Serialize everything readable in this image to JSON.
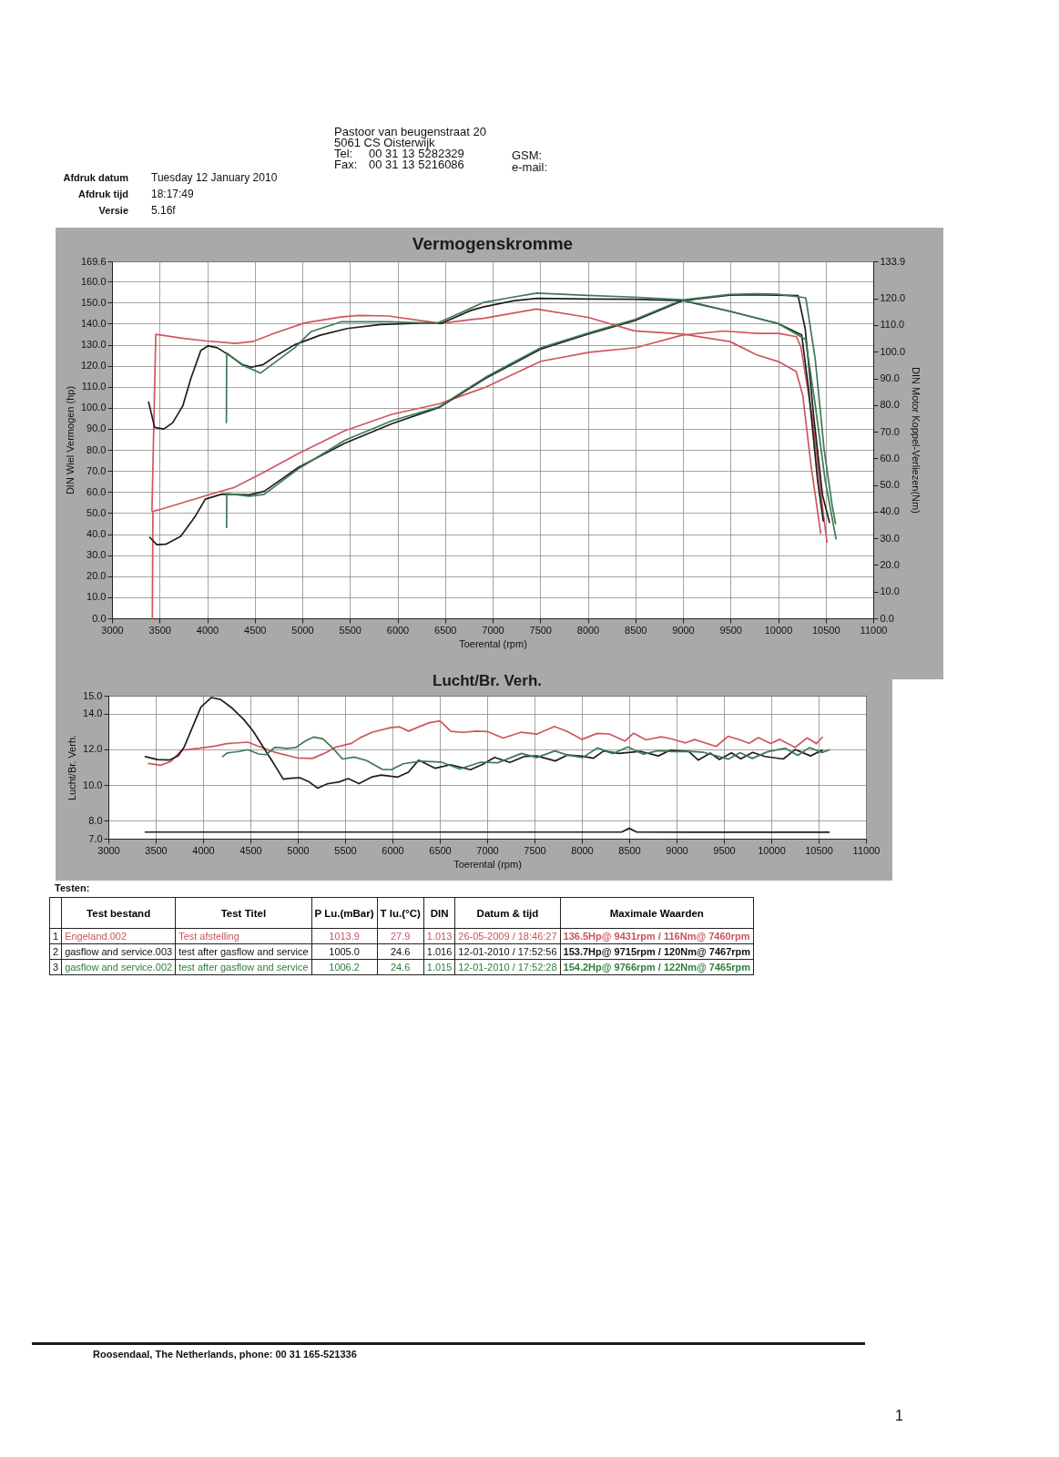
{
  "chart_data": [
    {
      "type": "other",
      "annotations": [
        "Afdruk datum",
        "Tuesday 12 January 2010",
        "Afdruk tijd",
        "18:17:49",
        "Versie",
        "5.16f",
        "Pastoor van beugenstraat  20",
        "5061 CS Oisterwijk",
        "Tel:",
        "00 31 13 5282329",
        "Fax:",
        "00 31 13 5216086",
        "GSM:",
        "e-mail:"
      ]
    },
    {
      "type": "line",
      "title": "Vermogenskromme",
      "xlabel": "Toerental (rpm)",
      "ylabel": "DIN Wiel Vermogen (hp)",
      "y2label": "DIN Motor Koppel-Verliezen(Nm)",
      "xlim": [
        3000,
        11000
      ],
      "xticks": [
        3000,
        3500,
        4000,
        4500,
        5000,
        5500,
        6000,
        6500,
        7000,
        7500,
        8000,
        8500,
        9000,
        9500,
        10000,
        10500,
        11000
      ],
      "ylim": [
        0,
        169.6
      ],
      "yticks": [
        {
          "value": 0,
          "label": "0.0"
        },
        {
          "value": 10,
          "label": "10.0"
        },
        {
          "value": 20,
          "label": "20.0"
        },
        {
          "value": 30,
          "label": "30.0"
        },
        {
          "value": 40,
          "label": "40.0"
        },
        {
          "value": 50,
          "label": "50.0"
        },
        {
          "value": 60,
          "label": "60.0"
        },
        {
          "value": 70,
          "label": "70.0"
        },
        {
          "value": 80,
          "label": "80.0"
        },
        {
          "value": 90,
          "label": "90.0"
        },
        {
          "value": 100,
          "label": "100.0"
        },
        {
          "value": 110,
          "label": "110.0"
        },
        {
          "value": 120,
          "label": "120.0"
        },
        {
          "value": 130,
          "label": "130.0"
        },
        {
          "value": 140,
          "label": "140.0"
        },
        {
          "value": 150,
          "label": "150.0"
        },
        {
          "value": 160,
          "label": "160.0"
        },
        169.6
      ],
      "y2lim": [
        0,
        133.9
      ],
      "y2ticks": [
        {
          "value": 0,
          "label": "0.0"
        },
        {
          "value": 10,
          "label": "10.0"
        },
        {
          "value": 20,
          "label": "20.0"
        },
        {
          "value": 30,
          "label": "30.0"
        },
        {
          "value": 40,
          "label": "40.0"
        },
        {
          "value": 50,
          "label": "50.0"
        },
        {
          "value": 60,
          "label": "60.0"
        },
        {
          "value": 70,
          "label": "70.0"
        },
        {
          "value": 80,
          "label": "80.0"
        },
        {
          "value": 90,
          "label": "90.0"
        },
        {
          "value": 100,
          "label": "100.0"
        },
        {
          "value": 110,
          "label": "110.0"
        },
        {
          "value": 120,
          "label": "120.0"
        },
        133.9
      ],
      "grid": true,
      "series": [
        {
          "color": "#d0565e",
          "x": [
            3424,
            3430,
            3522,
            3964,
            4280,
            4594,
            4955,
            5441,
            5940,
            6437,
            6925,
            7507,
            8014,
            8506,
            8999,
            9431,
            9777,
            10006,
            10192,
            10240,
            10363,
            10451,
            10514
          ],
          "values": [
            0,
            50.8,
            51.9,
            58.0,
            62.1,
            69.3,
            78.2,
            89.0,
            96.9,
            101.9,
            109.8,
            122.1,
            126.4,
            128.6,
            134.6,
            136.5,
            135.4,
            135.4,
            133.8,
            128.9,
            94.4,
            58.4,
            36.2
          ]
        },
        {
          "color": "#1e1e1e",
          "x": [
            3397,
            3470,
            3565,
            3722,
            3875,
            3981,
            4155,
            4442,
            4599,
            4959,
            5446,
            5943,
            6438,
            6925,
            7503,
            8008,
            8497,
            8995,
            9490,
            9715,
            9993,
            10210,
            10285,
            10378,
            10467,
            10540
          ],
          "values": [
            38.5,
            35.0,
            35.2,
            38.9,
            48.5,
            56.6,
            59.0,
            58.7,
            60.3,
            71.7,
            83.2,
            92.5,
            100.2,
            114.0,
            127.9,
            135.1,
            141.5,
            150.9,
            153.5,
            153.7,
            153.5,
            153.3,
            137.6,
            94.4,
            58.5,
            45.6
          ]
        },
        {
          "color": "#3d7a55",
          "x": [
            4204,
            4206,
            4442,
            4599,
            4959,
            5446,
            5943,
            6438,
            6925,
            7503,
            8008,
            8497,
            8995,
            9490,
            9766,
            9993,
            10291,
            10390,
            10484,
            10566,
            10604
          ],
          "values": [
            43.2,
            59.2,
            58.0,
            58.9,
            71.0,
            84.6,
            93.9,
            100.5,
            114.5,
            128.5,
            135.6,
            142.0,
            151.3,
            153.9,
            154.2,
            154.0,
            152.3,
            123.3,
            80.1,
            54.3,
            45.0
          ]
        },
        {
          "color": "#d0565e",
          "axis": "y2",
          "x": [
            3420,
            3460,
            3754,
            3977,
            4297,
            4488,
            4712,
            5023,
            5403,
            5594,
            5905,
            6267,
            6458,
            6779,
            6903,
            7460,
            8003,
            8490,
            8999,
            9496,
            9771,
            10003,
            10191,
            10260,
            10346,
            10448
          ],
          "values": [
            40.3,
            106.5,
            105.0,
            104.1,
            103.1,
            103.9,
            107.0,
            110.8,
            113.0,
            113.6,
            113.4,
            111.6,
            110.6,
            112.1,
            112.5,
            116.0,
            112.9,
            107.8,
            106.6,
            103.8,
            98.9,
            96.3,
            92.6,
            83.5,
            57.4,
            31.9
          ]
        },
        {
          "color": "#1e1e1e",
          "axis": "y2",
          "x": [
            3385,
            3448,
            3544,
            3637,
            3744,
            3830,
            3933,
            4011,
            4107,
            4238,
            4368,
            4464,
            4591,
            4747,
            4919,
            5187,
            5472,
            5821,
            6299,
            6458,
            6773,
            6900,
            7215,
            7467,
            8000,
            8498,
            9000,
            9499,
            9999,
            10248,
            10321,
            10415,
            10475
          ],
          "values": [
            81.1,
            71.6,
            71.0,
            73.3,
            79.7,
            90.1,
            100.4,
            102.2,
            101.5,
            98.5,
            95.2,
            94.2,
            95.2,
            99.0,
            102.6,
            106.2,
            108.7,
            110.2,
            110.8,
            110.6,
            115.5,
            116.8,
            119.1,
            120.0,
            119.8,
            119.7,
            119.2,
            115.1,
            110.6,
            106.3,
            85.9,
            51.8,
            36.5
          ]
        },
        {
          "color": "#3d7a55",
          "axis": "y2",
          "x": [
            4202,
            4205,
            4368,
            4562,
            4743,
            4920,
            5090,
            5406,
            5909,
            6410,
            6907,
            7215,
            7465,
            7995,
            8479,
            8981,
            9499,
            9999,
            10289,
            10390,
            10494,
            10609
          ],
          "values": [
            73.4,
            99.6,
            95.0,
            92.0,
            96.8,
            101.5,
            107.5,
            111.2,
            111.2,
            110.6,
            118.5,
            120.5,
            122.0,
            121.1,
            120.5,
            119.5,
            115.1,
            110.6,
            104.6,
            80.2,
            51.9,
            29.8
          ]
        }
      ]
    },
    {
      "type": "line",
      "title": "Lucht/Br. Verh.",
      "xlabel": "Toerental (rpm)",
      "ylabel": "Lucht/Br. Verh.",
      "xlim": [
        3000,
        11000
      ],
      "xticks": [
        3000,
        3500,
        4000,
        4500,
        5000,
        5500,
        6000,
        6500,
        7000,
        7500,
        8000,
        8500,
        9000,
        9500,
        10000,
        10500,
        11000
      ],
      "ylim": [
        7,
        15
      ],
      "yticks": [
        {
          "value": 7,
          "label": "7.0"
        },
        {
          "value": 8,
          "label": "8.0"
        },
        {
          "value": 10,
          "label": "10.0"
        },
        {
          "value": 12,
          "label": "12.0"
        },
        {
          "value": 14,
          "label": "14.0"
        },
        {
          "value": 15,
          "label": "15.0"
        }
      ],
      "grid": true,
      "series": [
        {
          "color": "#d0565e",
          "x": [
            3424,
            3552,
            3663,
            3773,
            3964,
            4123,
            4250,
            4474,
            4571,
            4768,
            4992,
            5153,
            5279,
            5404,
            5567,
            5658,
            5788,
            5979,
            6075,
            6170,
            6280,
            6390,
            6502,
            6617,
            6746,
            6878,
            7007,
            7169,
            7360,
            7521,
            7711,
            7840,
            8003,
            8161,
            8290,
            8453,
            8547,
            8678,
            8837,
            8950,
            9095,
            9191,
            9418,
            9543,
            9671,
            9767,
            9863,
            9994,
            10090,
            10252,
            10378,
            10476,
            10539
          ],
          "values": [
            11.21,
            11.11,
            11.33,
            11.95,
            12.06,
            12.18,
            12.32,
            12.4,
            12.2,
            11.82,
            11.52,
            11.49,
            11.77,
            12.13,
            12.33,
            12.65,
            12.96,
            13.21,
            13.26,
            13.02,
            13.26,
            13.49,
            13.59,
            13.01,
            12.95,
            13.02,
            12.99,
            12.63,
            12.96,
            12.85,
            13.28,
            13.01,
            12.56,
            12.89,
            12.86,
            12.46,
            12.9,
            12.53,
            12.7,
            12.58,
            12.36,
            12.55,
            12.16,
            12.73,
            12.53,
            12.34,
            12.66,
            12.32,
            12.56,
            12.11,
            12.64,
            12.32,
            12.67
          ]
        },
        {
          "color": "#1e1e1e",
          "x": [
            3390,
            3518,
            3645,
            3740,
            3800,
            3889,
            3978,
            4089,
            4185,
            4299,
            4430,
            4530,
            4630,
            4730,
            4847,
            4926,
            5021,
            5119,
            5210,
            5312,
            5438,
            5533,
            5646,
            5787,
            5882,
            6057,
            6168,
            6276,
            6453,
            6612,
            6824,
            6950,
            7079,
            7240,
            7398,
            7526,
            7719,
            7846,
            8007,
            8120,
            8230,
            8391,
            8614,
            8808,
            8934,
            9127,
            9229,
            9355,
            9453,
            9580,
            9678,
            9804,
            9934,
            10127,
            10252,
            10414,
            10540
          ],
          "values": [
            11.59,
            11.43,
            11.4,
            11.65,
            12.12,
            13.25,
            14.37,
            14.9,
            14.79,
            14.34,
            13.67,
            13.01,
            12.17,
            11.34,
            10.33,
            10.38,
            10.41,
            10.18,
            9.83,
            10.07,
            10.18,
            10.36,
            10.08,
            10.46,
            10.56,
            10.45,
            10.72,
            11.39,
            10.94,
            11.14,
            10.86,
            11.15,
            11.55,
            11.27,
            11.61,
            11.63,
            11.35,
            11.68,
            11.62,
            11.5,
            11.91,
            11.77,
            11.89,
            11.63,
            11.95,
            11.89,
            11.4,
            11.79,
            11.43,
            11.8,
            11.47,
            11.83,
            11.6,
            11.46,
            11.99,
            11.63,
            11.95
          ]
        },
        {
          "color": "#3d7a55",
          "x": [
            4207,
            4254,
            4380,
            4474,
            4586,
            4665,
            4757,
            4886,
            4980,
            5075,
            5170,
            5265,
            5376,
            5472,
            5598,
            5728,
            5890,
            5987,
            6113,
            6303,
            6512,
            6710,
            6934,
            7112,
            7362,
            7525,
            7715,
            7846,
            8008,
            8166,
            8328,
            8486,
            8648,
            8806,
            8967,
            9127,
            9288,
            9449,
            9546,
            9671,
            9800,
            9958,
            10149,
            10280,
            10405,
            10534,
            10613
          ],
          "values": [
            11.59,
            11.8,
            11.88,
            11.98,
            11.74,
            11.7,
            12.11,
            12.05,
            12.1,
            12.45,
            12.69,
            12.59,
            12.04,
            11.46,
            11.57,
            11.37,
            10.88,
            10.86,
            11.19,
            11.34,
            11.29,
            10.9,
            11.28,
            11.25,
            11.77,
            11.54,
            11.91,
            11.68,
            11.54,
            12.08,
            11.76,
            12.13,
            11.73,
            11.92,
            11.87,
            11.89,
            11.83,
            11.6,
            11.45,
            11.81,
            11.49,
            11.86,
            12.06,
            11.66,
            12.1,
            11.82,
            11.97
          ]
        },
        {
          "color": "#1e1e1e",
          "x": [
            3390,
            8420,
            8500,
            8580,
            10610
          ],
          "values": [
            7.37,
            7.37,
            7.58,
            7.37,
            7.36
          ]
        }
      ]
    },
    {
      "type": "other",
      "title": "Testen:",
      "categories": [
        null,
        "Test bestand",
        "Test Titel",
        "P Lu.(mBar)",
        "T lu.(°C)",
        "DIN",
        "Datum & tijd",
        "Maximale Waarden"
      ],
      "colors": [
        "#c8545c",
        "#111111",
        "#2f7d3e"
      ],
      "annotations": [
        "1",
        "Engeland.002",
        "Test afstelling",
        "1013.9",
        "27.9",
        "1.013",
        "26-05-2009 / 18:46:27",
        "136.5Hp@ 9431rpm / 116Nm@ 7460rpm",
        "2",
        "gasflow and service.003",
        "test after gasflow and service",
        "1005.0",
        "24.6",
        "1.016",
        "12-01-2010 / 17:52:56",
        "153.7Hp@ 9715rpm / 120Nm@ 7467rpm",
        "3",
        "gasflow and service.002",
        "test after gasflow and service",
        "1006.2",
        "24.6",
        "1.015",
        "12-01-2010 / 17:52:28",
        "154.2Hp@ 9766rpm / 122Nm@ 7465rpm"
      ]
    },
    {
      "type": "other",
      "annotations": [
        "Roosendaal, The Netherlands, phone: 00 31 165-521336",
        "1"
      ]
    }
  ]
}
